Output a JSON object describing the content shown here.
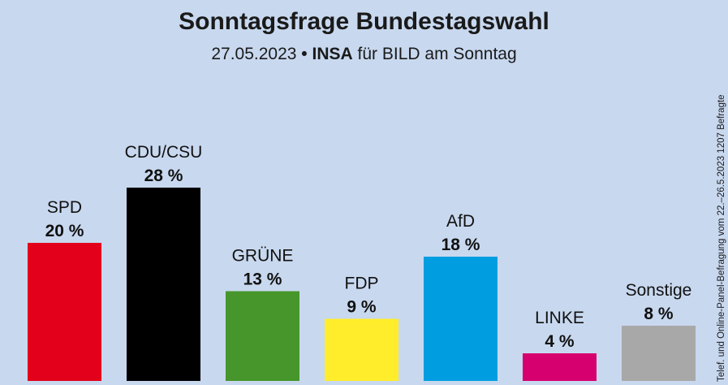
{
  "title": "Sonntagsfrage Bundestagswahl",
  "subtitle": {
    "date": "27.05.2023",
    "separator": "•",
    "institute": "INSA",
    "client": "für BILD am Sonntag"
  },
  "side_note": "Telef. und Online-Panel-Befragung vom 22.–26.5.2023  1207 Befragte",
  "chart_data": {
    "type": "bar",
    "title": "Sonntagsfrage Bundestagswahl",
    "categories": [
      "SPD",
      "CDU/CSU",
      "GRÜNE",
      "FDP",
      "AfD",
      "LINKE",
      "Sonstige"
    ],
    "values": [
      20,
      28,
      13,
      9,
      18,
      4,
      8
    ],
    "value_labels": [
      "20 %",
      "28 %",
      "13 %",
      "9 %",
      "18 %",
      "4 %",
      "8 %"
    ],
    "colors": [
      "#e3001b",
      "#000000",
      "#46962b",
      "#ffed2b",
      "#009ee0",
      "#d6006e",
      "#a8a8a8"
    ],
    "xlabel": "",
    "ylabel": "",
    "ylim": [
      0,
      28
    ],
    "grid": false,
    "legend": "none"
  }
}
